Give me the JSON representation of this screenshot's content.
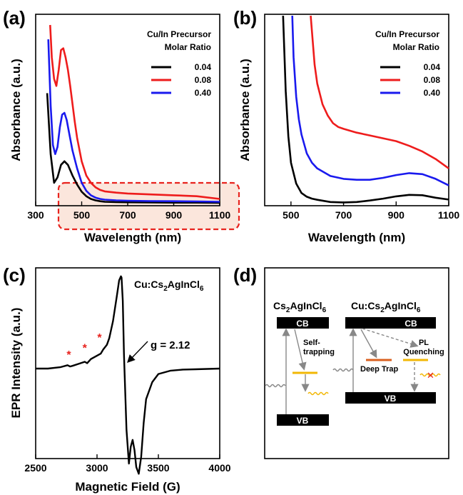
{
  "colors": {
    "c004": "#000000",
    "c008": "#ee1c1c",
    "c040": "#1a1aee",
    "trap": "#d9601f",
    "level": "#f2b705",
    "arrow": "#888888",
    "highlight": "#e8231e"
  },
  "panel_labels": [
    "(a)",
    "(b)",
    "(c)",
    "(d)"
  ],
  "chart_data": [
    {
      "type": "line",
      "panel": "(a)",
      "xlabel": "Wavelength (nm)",
      "ylabel": "Absorbance (a.u.)",
      "xlim": [
        300,
        1100
      ],
      "ylim": [
        0,
        1
      ],
      "xticks": [
        "300",
        "500",
        "700",
        "900",
        "1100"
      ],
      "legend_title": [
        "Cu/In Precursor",
        "Molar Ratio"
      ],
      "legend_position": "top-right",
      "highlight_region": [
        400,
        1100
      ],
      "series": [
        {
          "name": "0.04",
          "color": "#000000",
          "x": [
            350,
            365,
            380,
            395,
            410,
            425,
            440,
            460,
            480,
            500,
            520,
            540,
            560,
            580,
            600,
            650,
            700,
            800,
            900,
            1000,
            1100
          ],
          "y": [
            0.62,
            0.28,
            0.12,
            0.15,
            0.22,
            0.24,
            0.22,
            0.16,
            0.11,
            0.07,
            0.045,
            0.03,
            0.022,
            0.017,
            0.014,
            0.012,
            0.011,
            0.01,
            0.009,
            0.009,
            0.008
          ]
        },
        {
          "name": "0.40",
          "color": "#1a1aee",
          "x": [
            355,
            365,
            375,
            385,
            395,
            405,
            415,
            425,
            435,
            445,
            460,
            480,
            500,
            520,
            540,
            560,
            580,
            600,
            650,
            700,
            800,
            900,
            1000,
            1100
          ],
          "y": [
            0.92,
            0.55,
            0.33,
            0.28,
            0.32,
            0.43,
            0.5,
            0.51,
            0.47,
            0.4,
            0.3,
            0.2,
            0.12,
            0.075,
            0.05,
            0.037,
            0.03,
            0.026,
            0.022,
            0.02,
            0.018,
            0.017,
            0.016,
            0.014
          ]
        },
        {
          "name": "0.08",
          "color": "#ee1c1c",
          "x": [
            363,
            370,
            380,
            390,
            400,
            410,
            420,
            430,
            440,
            450,
            460,
            470,
            480,
            500,
            520,
            540,
            560,
            580,
            600,
            650,
            700,
            800,
            900,
            1000,
            1100
          ],
          "y": [
            1.0,
            0.82,
            0.7,
            0.66,
            0.75,
            0.86,
            0.87,
            0.82,
            0.75,
            0.66,
            0.56,
            0.46,
            0.37,
            0.24,
            0.16,
            0.12,
            0.095,
            0.08,
            0.072,
            0.065,
            0.06,
            0.055,
            0.05,
            0.045,
            0.03
          ]
        }
      ]
    },
    {
      "type": "line",
      "panel": "(b)",
      "xlabel": "Wavelength (nm)",
      "ylabel": "Absorbance (a.u.)",
      "xlim": [
        400,
        1100
      ],
      "ylim": [
        0,
        1
      ],
      "xticks": [
        "500",
        "700",
        "900",
        "1100"
      ],
      "legend_title": [
        "Cu/In Precursor",
        "Molar Ratio"
      ],
      "legend_position": "top-right",
      "series": [
        {
          "name": "0.04",
          "color": "#000000",
          "x": [
            470,
            480,
            490,
            500,
            520,
            540,
            560,
            580,
            600,
            650,
            700,
            750,
            800,
            850,
            900,
            950,
            1000,
            1050,
            1100
          ],
          "y": [
            1.0,
            0.6,
            0.36,
            0.22,
            0.11,
            0.06,
            0.04,
            0.03,
            0.024,
            0.012,
            0.01,
            0.012,
            0.02,
            0.03,
            0.042,
            0.05,
            0.048,
            0.035,
            0.025
          ]
        },
        {
          "name": "0.40",
          "color": "#1a1aee",
          "x": [
            505,
            510,
            520,
            530,
            540,
            560,
            580,
            600,
            650,
            700,
            750,
            800,
            850,
            900,
            950,
            1000,
            1050,
            1100
          ],
          "y": [
            1.0,
            0.78,
            0.57,
            0.45,
            0.37,
            0.27,
            0.22,
            0.19,
            0.15,
            0.135,
            0.13,
            0.13,
            0.14,
            0.155,
            0.165,
            0.16,
            0.135,
            0.1
          ]
        },
        {
          "name": "0.08",
          "color": "#ee1c1c",
          "x": [
            575,
            590,
            600,
            620,
            640,
            660,
            680,
            700,
            750,
            800,
            850,
            900,
            950,
            1000,
            1050,
            1100
          ],
          "y": [
            1.0,
            0.74,
            0.64,
            0.53,
            0.47,
            0.43,
            0.41,
            0.4,
            0.38,
            0.365,
            0.35,
            0.335,
            0.31,
            0.28,
            0.24,
            0.19
          ]
        }
      ]
    },
    {
      "type": "line",
      "panel": "(c)",
      "xlabel": "Magnetic Field (G)",
      "ylabel": "EPR Intensity (a.u.)",
      "xlim": [
        2500,
        4000
      ],
      "xticks": [
        "2500",
        "3000",
        "3500",
        "4000"
      ],
      "annotation_g": "g = 2.12",
      "sample_label": {
        "pre": "Cu:Cs",
        "sub1": "2",
        "mid": "AgInCl",
        "sub2": "6"
      },
      "star_markers": [
        2770,
        2900,
        3020
      ],
      "star_symbol": "*",
      "series": [
        {
          "name": "",
          "color": "#000000",
          "x": [
            2500,
            2600,
            2700,
            2760,
            2780,
            2800,
            2850,
            2900,
            2920,
            2950,
            3000,
            3030,
            3050,
            3080,
            3100,
            3130,
            3160,
            3180,
            3195,
            3200,
            3210,
            3220,
            3240,
            3260,
            3275,
            3290,
            3305,
            3320,
            3340,
            3360,
            3380,
            3400,
            3450,
            3500,
            3600,
            3700,
            3800,
            3900,
            4000
          ],
          "y": [
            0.0,
            0.0,
            0.02,
            0.05,
            0.03,
            0.04,
            0.07,
            0.1,
            0.08,
            0.14,
            0.19,
            0.22,
            0.28,
            0.35,
            0.45,
            0.7,
            1.05,
            1.3,
            1.36,
            1.34,
            1.0,
            0.2,
            -0.9,
            -1.4,
            -1.15,
            -1.05,
            -1.2,
            -1.45,
            -1.55,
            -1.3,
            -0.8,
            -0.45,
            -0.2,
            -0.08,
            -0.03,
            -0.015,
            -0.01,
            -0.005,
            0.0
          ]
        }
      ]
    }
  ],
  "highlight_ticks": [
    "500",
    "700",
    "900",
    "1100"
  ],
  "diagram": {
    "left_title": {
      "pre": "Cs",
      "sub1": "2",
      "mid": "AgInCl",
      "sub2": "6"
    },
    "right_title": {
      "pre": "Cu:Cs",
      "sub1": "2",
      "mid": "AgInCl",
      "sub2": "6"
    },
    "cb": "CB",
    "vb": "VB",
    "self_trapping": [
      "Self-",
      "trapping"
    ],
    "pl_quenching": [
      "PL",
      "Quenching"
    ],
    "deep_trap": "Deep Trap",
    "cross": "✕"
  }
}
